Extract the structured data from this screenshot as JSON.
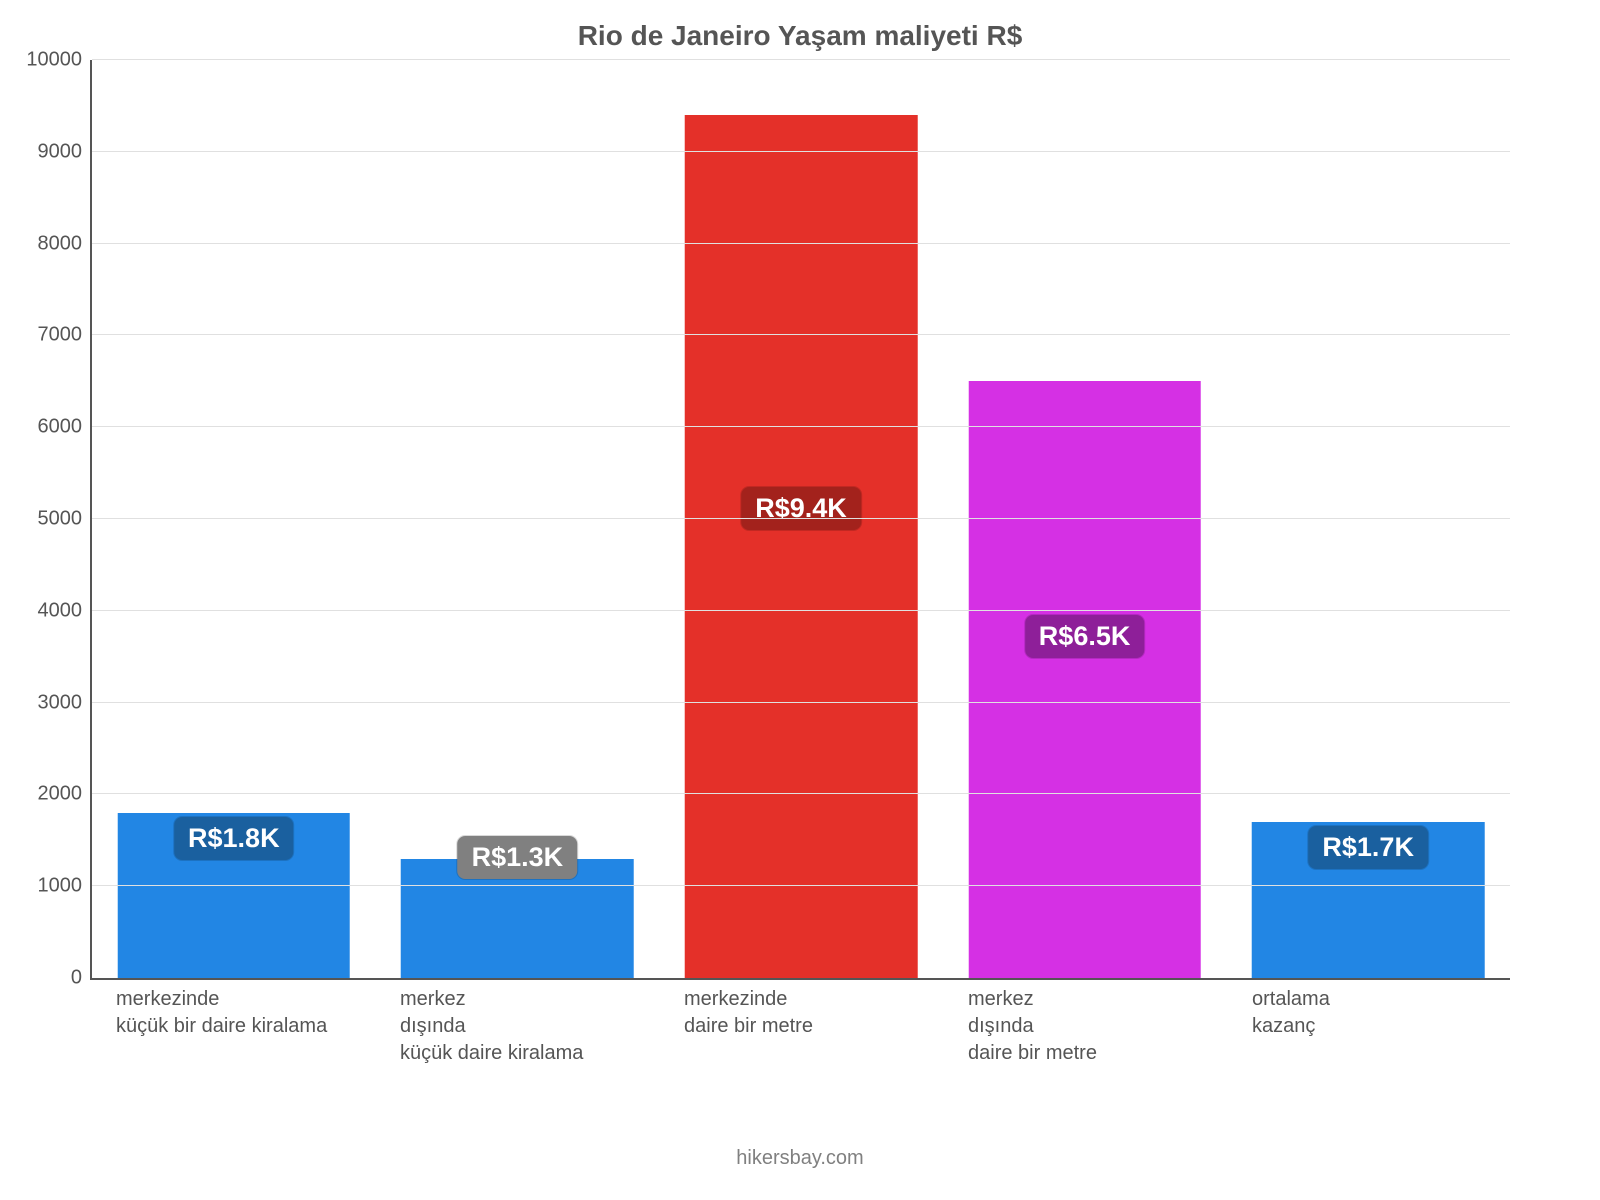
{
  "chart": {
    "type": "bar",
    "title": "Rio de Janeiro Yaşam maliyeti R$",
    "title_color": "#555555",
    "title_fontsize": 28,
    "background_color": "#ffffff",
    "axis_color": "#555555",
    "grid_color": "#e0e0e0",
    "label_color": "#555555",
    "tick_fontsize": 20,
    "xlabel_fontsize": 20,
    "badge_fontsize": 27,
    "badge_text_color": "#ffffff",
    "ylim_min": 0,
    "ylim_max": 10000,
    "ytick_step": 1000,
    "yticks": [
      {
        "v": 0,
        "label": "0"
      },
      {
        "v": 1000,
        "label": "1000"
      },
      {
        "v": 2000,
        "label": "2000"
      },
      {
        "v": 3000,
        "label": "3000"
      },
      {
        "v": 4000,
        "label": "4000"
      },
      {
        "v": 5000,
        "label": "5000"
      },
      {
        "v": 6000,
        "label": "6000"
      },
      {
        "v": 7000,
        "label": "7000"
      },
      {
        "v": 8000,
        "label": "8000"
      },
      {
        "v": 9000,
        "label": "9000"
      },
      {
        "v": 10000,
        "label": "10000"
      }
    ],
    "bars": [
      {
        "value": 1800,
        "bar_color": "#2286e4",
        "badge_text": "R$1.8K",
        "badge_color": "#1a609f",
        "badge_center_value": 1500,
        "xlabel": "merkezinde\nküçük bir daire kiralama"
      },
      {
        "value": 1300,
        "bar_color": "#2286e4",
        "badge_text": "R$1.3K",
        "badge_color": "#808080",
        "badge_center_value": 1300,
        "xlabel": "merkez\ndışında\nküçük daire kiralama"
      },
      {
        "value": 9400,
        "bar_color": "#e43029",
        "badge_text": "R$9.4K",
        "badge_color": "#a3221c",
        "badge_center_value": 5100,
        "xlabel": "merkezinde\ndaire bir metre"
      },
      {
        "value": 6500,
        "bar_color": "#d530e4",
        "badge_text": "R$6.5K",
        "badge_color": "#8e1f99",
        "badge_center_value": 3700,
        "xlabel": "merkez\ndışında\ndaire bir metre"
      },
      {
        "value": 1700,
        "bar_color": "#2286e4",
        "badge_text": "R$1.7K",
        "badge_color": "#1a609f",
        "badge_center_value": 1400,
        "xlabel": "ortalama\nkazanç"
      }
    ]
  },
  "attribution": "hikersbay.com"
}
